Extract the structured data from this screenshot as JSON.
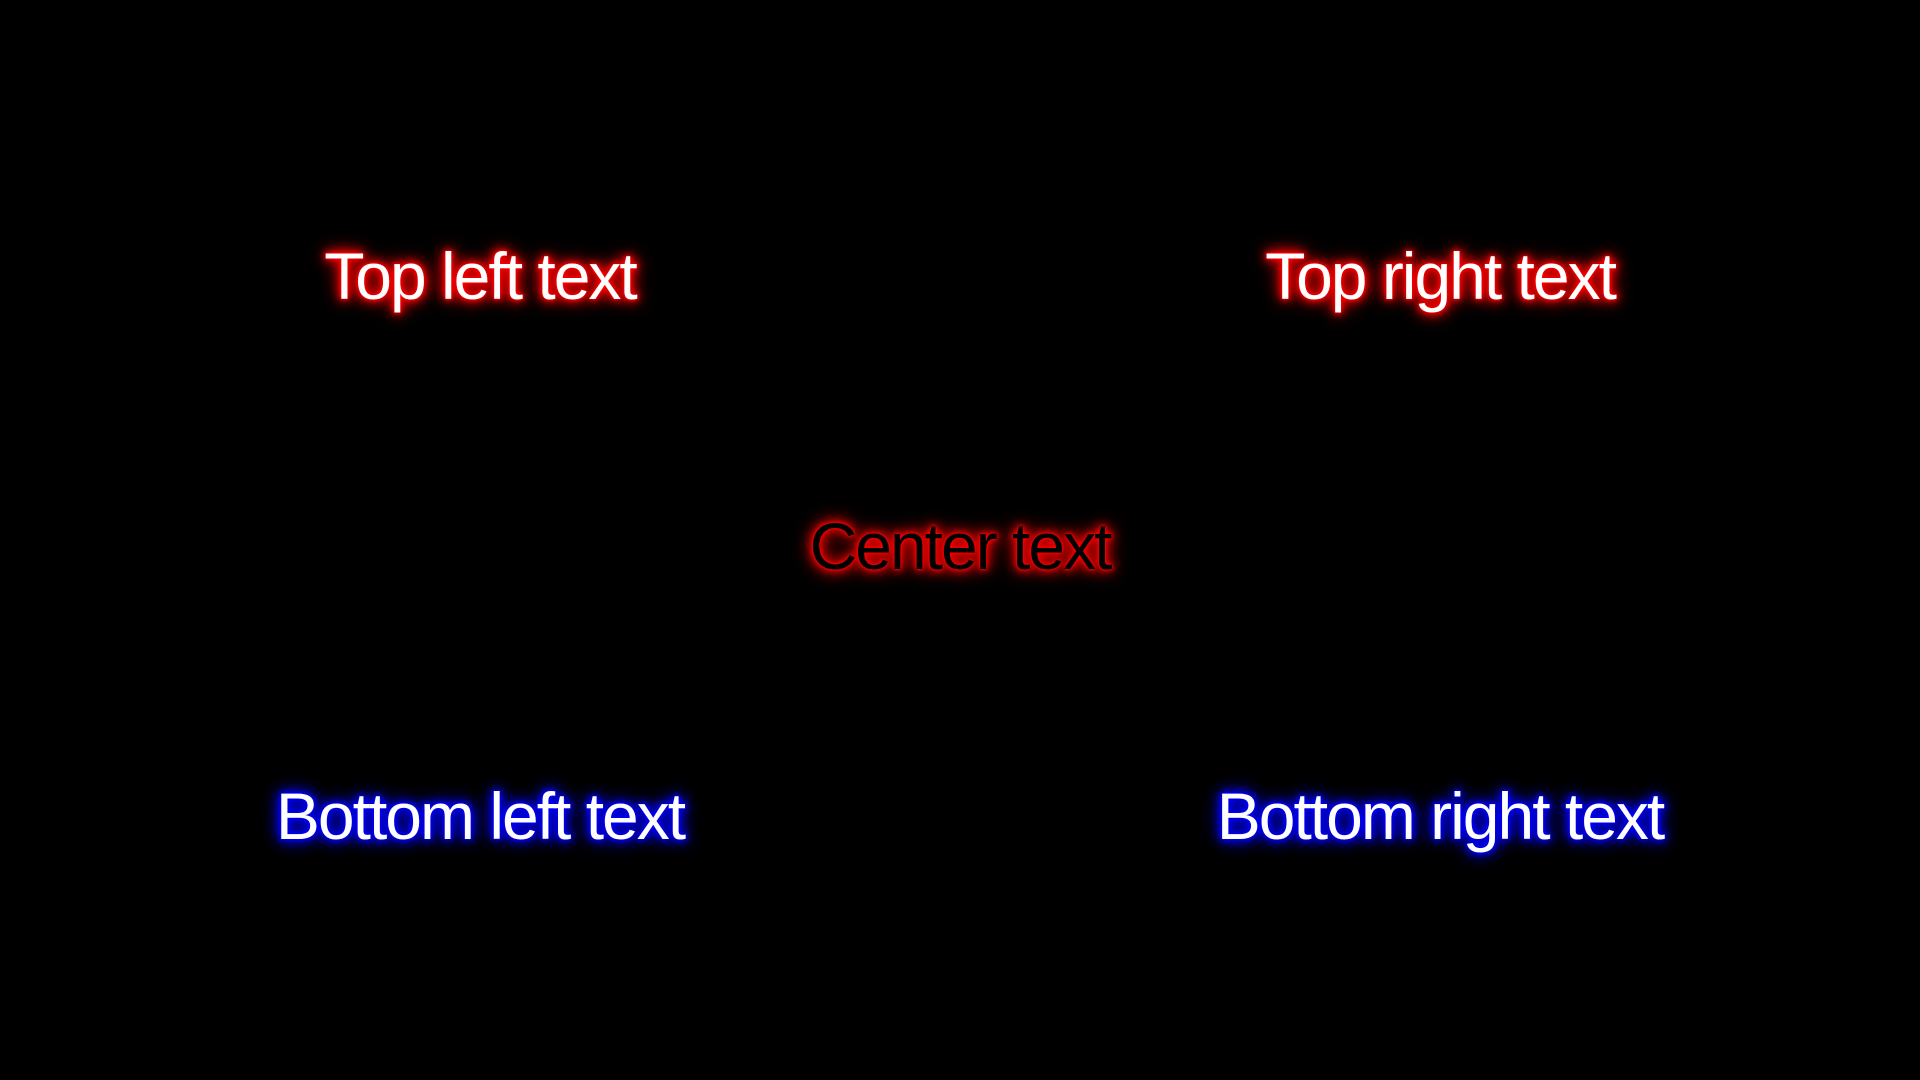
{
  "texts": {
    "top_left": "Top left text",
    "top_right": "Top right text",
    "center": "Center text",
    "bottom_left": "Bottom left text",
    "bottom_right": "Bottom right text"
  },
  "colors": {
    "background": "#000000",
    "red_glow": "#ff0000",
    "blue_glow": "#0000ff",
    "text_fill_light": "#ffffff",
    "text_fill_dark": "#000000"
  }
}
